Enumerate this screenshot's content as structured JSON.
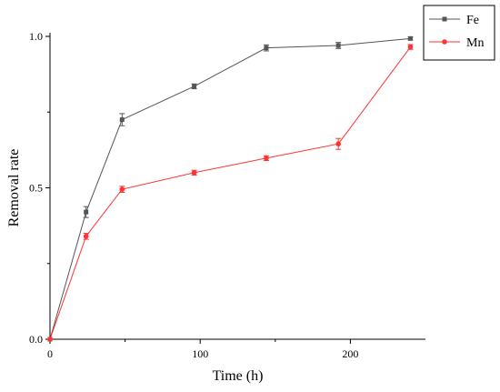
{
  "chart_data": {
    "type": "line",
    "xlabel": "Time (h)",
    "ylabel": "Removal rate",
    "xlim": [
      0,
      250
    ],
    "ylim": [
      0,
      1.0
    ],
    "xticks": [
      0,
      100,
      200
    ],
    "yticks": [
      0.0,
      0.5,
      1.0
    ],
    "ytick_labels": [
      "0.0",
      "0.5",
      "1.0"
    ],
    "legend_position": "top-right",
    "grid": false,
    "series": [
      {
        "name": "Fe",
        "color": "#555555",
        "marker": "square",
        "x": [
          0,
          24,
          48,
          96,
          144,
          192,
          240
        ],
        "y": [
          0.0,
          0.42,
          0.725,
          0.835,
          0.962,
          0.97,
          0.993
        ],
        "error": [
          0,
          0.018,
          0.02,
          0.008,
          0.01,
          0.01,
          0.005
        ]
      },
      {
        "name": "Mn",
        "color": "#ff3333",
        "marker": "circle",
        "x": [
          0,
          24,
          48,
          96,
          144,
          192,
          240
        ],
        "y": [
          0.0,
          0.34,
          0.495,
          0.55,
          0.598,
          0.645,
          0.965
        ],
        "error": [
          0,
          0.01,
          0.01,
          0.008,
          0.008,
          0.018,
          0.008
        ]
      }
    ]
  }
}
